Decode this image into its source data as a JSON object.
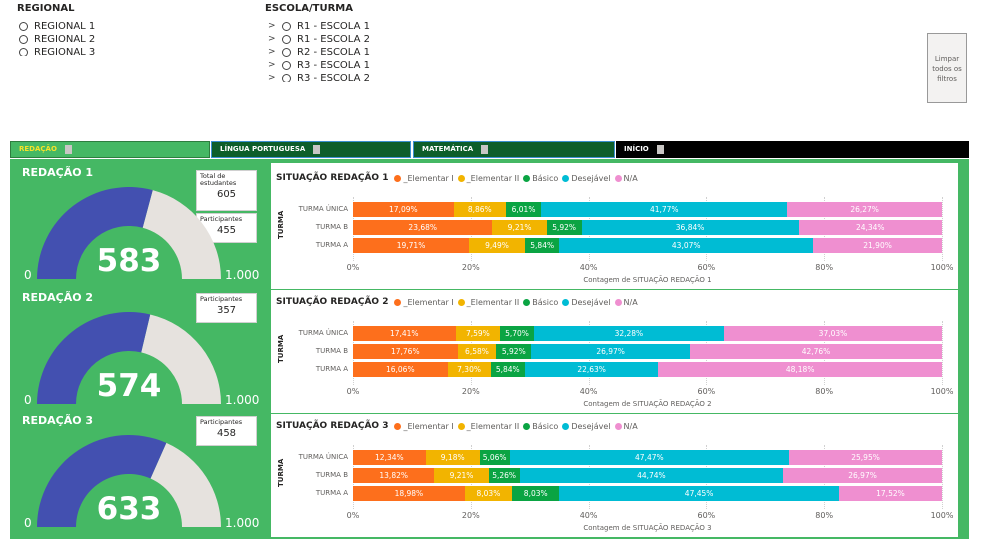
{
  "filters": {
    "regional": {
      "title": "REGIONAL",
      "items": [
        "REGIONAL 1",
        "REGIONAL 2",
        "REGIONAL 3"
      ]
    },
    "escola": {
      "title": "ESCOLA/TURMA",
      "items": [
        "R1 - ESCOLA 1",
        "R1 - ESCOLA 2",
        "R2 - ESCOLA 1",
        "R3 - ESCOLA 1",
        "R3 - ESCOLA 2"
      ]
    },
    "clear_button": "Limpar todos os filtros"
  },
  "tabs": [
    {
      "label": "REDAÇÃO"
    },
    {
      "label": "LÍNGUA PORTUGUESA"
    },
    {
      "label": "MATEMÁTICA"
    },
    {
      "label": "INÍCIO"
    }
  ],
  "cards": {
    "total_label": "Total de estudantes",
    "total_value": "605",
    "participants_label": "Participantes"
  },
  "sections": [
    {
      "title": "REDAÇÃO 1",
      "participants": "455",
      "value": "583",
      "min": "0",
      "max": "1.000",
      "fraction": 0.583
    },
    {
      "title": "REDAÇÃO 2",
      "participants": "357",
      "value": "574",
      "min": "0",
      "max": "1.000",
      "fraction": 0.574
    },
    {
      "title": "REDAÇÃO 3",
      "participants": "458",
      "value": "633",
      "min": "0",
      "max": "1.000",
      "fraction": 0.633
    }
  ],
  "colors": {
    "elementar1": "#fd6f1c",
    "elementar2": "#f2b400",
    "basico": "#0aa443",
    "desejavel": "#00bcd4",
    "na": "#ef8fd0",
    "gauge_fill": "#4350b0",
    "gauge_track": "#e6e2de",
    "page_green": "#45b864"
  },
  "chart_data": [
    {
      "type": "bar",
      "orientation": "horizontal-stacked-100",
      "title": "SITUAÇÃO REDAÇÃO 1",
      "xlabel": "Contagem de SITUAÇÃO REDAÇÃO 1",
      "ylabel": "TURMA",
      "categories": [
        "TURMA ÚNICA",
        "TURMA B",
        "TURMA A"
      ],
      "xticks": [
        "0%",
        "20%",
        "40%",
        "60%",
        "80%",
        "100%"
      ],
      "series": [
        {
          "name": "_Elementar I",
          "values": [
            17.09,
            23.68,
            19.71
          ],
          "labels": [
            "17,09%",
            "23,68%",
            "19,71%"
          ]
        },
        {
          "name": "_Elementar II",
          "values": [
            8.86,
            9.21,
            9.49
          ],
          "labels": [
            "8,86%",
            "9,21%",
            "9,49%"
          ]
        },
        {
          "name": "Básico",
          "values": [
            6.01,
            5.92,
            5.84
          ],
          "labels": [
            "6,01%",
            "5,92%",
            "5,84%"
          ]
        },
        {
          "name": "Desejável",
          "values": [
            41.77,
            36.84,
            43.07
          ],
          "labels": [
            "41,77%",
            "36,84%",
            "43,07%"
          ]
        },
        {
          "name": "N/A",
          "values": [
            26.27,
            24.34,
            21.9
          ],
          "labels": [
            "26,27%",
            "24,34%",
            "21,90%"
          ]
        }
      ]
    },
    {
      "type": "bar",
      "orientation": "horizontal-stacked-100",
      "title": "SITUAÇÃO REDAÇÃO 2",
      "xlabel": "Contagem de SITUAÇÃO REDAÇÃO 2",
      "ylabel": "TURMA",
      "categories": [
        "TURMA ÚNICA",
        "TURMA B",
        "TURMA A"
      ],
      "xticks": [
        "0%",
        "20%",
        "40%",
        "60%",
        "80%",
        "100%"
      ],
      "series": [
        {
          "name": "_Elementar I",
          "values": [
            17.41,
            17.76,
            16.06
          ],
          "labels": [
            "17,41%",
            "17,76%",
            "16,06%"
          ]
        },
        {
          "name": "_Elementar II",
          "values": [
            7.59,
            6.58,
            7.3
          ],
          "labels": [
            "7,59%",
            "6,58%",
            "7,30%"
          ]
        },
        {
          "name": "Básico",
          "values": [
            5.7,
            5.92,
            5.84
          ],
          "labels": [
            "5,70%",
            "5,92%",
            "5,84%"
          ]
        },
        {
          "name": "Desejável",
          "values": [
            32.28,
            26.97,
            22.63
          ],
          "labels": [
            "32,28%",
            "26,97%",
            "22,63%"
          ]
        },
        {
          "name": "N/A",
          "values": [
            37.03,
            42.76,
            48.18
          ],
          "labels": [
            "37,03%",
            "42,76%",
            "48,18%"
          ]
        }
      ]
    },
    {
      "type": "bar",
      "orientation": "horizontal-stacked-100",
      "title": "SITUAÇÃO REDAÇÃO 3",
      "xlabel": "Contagem de SITUAÇÃO REDAÇÃO 3",
      "ylabel": "TURMA",
      "categories": [
        "TURMA ÚNICA",
        "TURMA B",
        "TURMA A"
      ],
      "xticks": [
        "0%",
        "20%",
        "40%",
        "60%",
        "80%",
        "100%"
      ],
      "series": [
        {
          "name": "_Elementar I",
          "values": [
            12.34,
            13.82,
            18.98
          ],
          "labels": [
            "12,34%",
            "13,82%",
            "18,98%"
          ]
        },
        {
          "name": "_Elementar II",
          "values": [
            9.18,
            9.21,
            8.03
          ],
          "labels": [
            "9,18%",
            "9,21%",
            "8,03%"
          ]
        },
        {
          "name": "Básico",
          "values": [
            5.06,
            5.26,
            8.03
          ],
          "labels": [
            "5,06%",
            "5,26%",
            "8,03%"
          ]
        },
        {
          "name": "Desejável",
          "values": [
            47.47,
            44.74,
            47.45
          ],
          "labels": [
            "47,47%",
            "44,74%",
            "47,45%"
          ]
        },
        {
          "name": "N/A",
          "values": [
            25.95,
            26.97,
            17.52
          ],
          "labels": [
            "25,95%",
            "26,97%",
            "17,52%"
          ]
        }
      ]
    }
  ]
}
